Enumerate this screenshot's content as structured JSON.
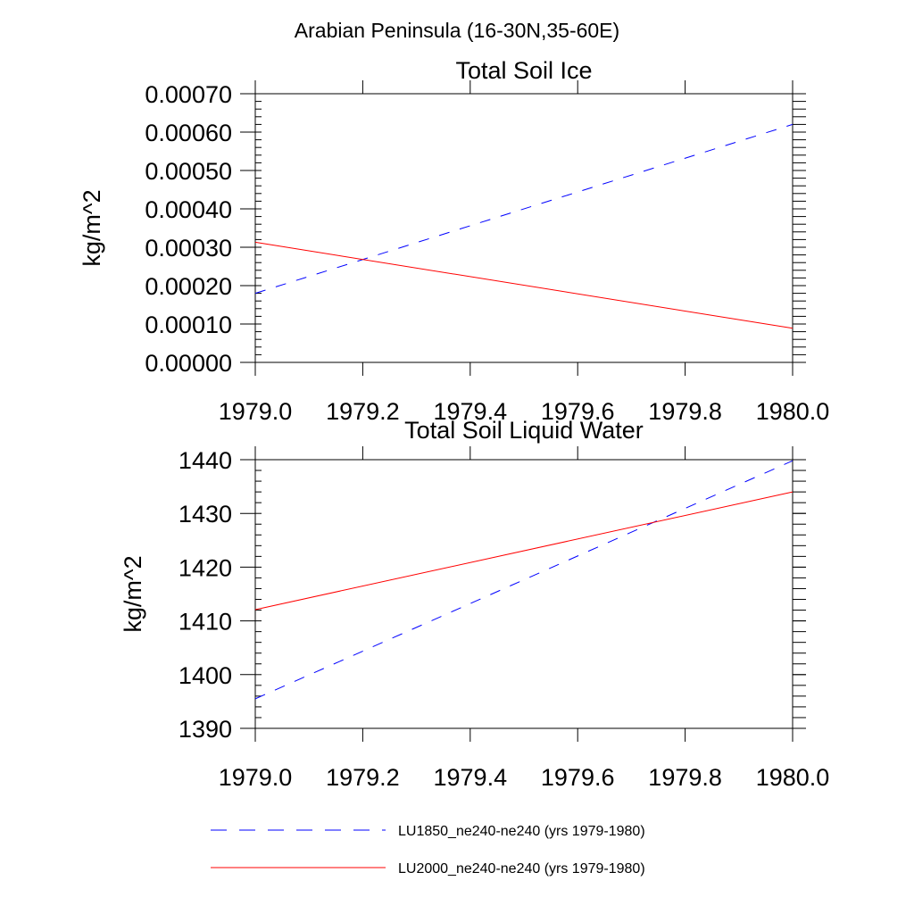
{
  "figure_title": "Arabian Peninsula (16-30N,35-60E)",
  "colors": {
    "series_1": "#0000ff",
    "series_2": "#ff0000",
    "axes": "#000000",
    "background": "#ffffff"
  },
  "legend": {
    "placement": "bottom",
    "entries": [
      {
        "label": "LU1850_ne240-ne240 (yrs 1979-1980)",
        "style": "dashed",
        "color": "#0000ff"
      },
      {
        "label": "LU2000_ne240-ne240 (yrs 1979-1980)",
        "style": "solid",
        "color": "#ff0000"
      }
    ]
  },
  "chart_data": [
    {
      "type": "line",
      "title": "Total Soil Ice",
      "xlabel": "",
      "ylabel": "kg/m^2",
      "xlim": [
        1979.0,
        1980.0
      ],
      "ylim": [
        0.0,
        0.0007
      ],
      "x_ticks": [
        1979.0,
        1979.2,
        1979.4,
        1979.6,
        1979.8,
        1980.0
      ],
      "x_tick_labels": [
        "1979.0",
        "1979.2",
        "1979.4",
        "1979.6",
        "1979.8",
        "1980.0"
      ],
      "y_ticks": [
        0.0,
        0.0001,
        0.0002,
        0.0003,
        0.0004,
        0.0005,
        0.0006,
        0.0007
      ],
      "y_tick_labels": [
        "0.00000",
        "0.00010",
        "0.00020",
        "0.00030",
        "0.00040",
        "0.00050",
        "0.00060",
        "0.00070"
      ],
      "y_minor_step": 2e-05,
      "grid": false,
      "series": [
        {
          "style": "dashed",
          "color": "#0000ff",
          "x": [
            1979.0,
            1980.0
          ],
          "y": [
            0.00018,
            0.00062
          ]
        },
        {
          "style": "solid",
          "color": "#ff0000",
          "x": [
            1979.0,
            1980.0
          ],
          "y": [
            0.000313,
            8.9e-05
          ]
        }
      ]
    },
    {
      "type": "line",
      "title": "Total Soil Liquid Water",
      "xlabel": "",
      "ylabel": "kg/m^2",
      "xlim": [
        1979.0,
        1980.0
      ],
      "ylim": [
        1390,
        1440
      ],
      "x_ticks": [
        1979.0,
        1979.2,
        1979.4,
        1979.6,
        1979.8,
        1980.0
      ],
      "x_tick_labels": [
        "1979.0",
        "1979.2",
        "1979.4",
        "1979.6",
        "1979.8",
        "1980.0"
      ],
      "y_ticks": [
        1390,
        1400,
        1410,
        1420,
        1430,
        1440
      ],
      "y_tick_labels": [
        "1390",
        "1400",
        "1410",
        "1420",
        "1430",
        "1440"
      ],
      "y_minor_step": 2,
      "grid": false,
      "series": [
        {
          "style": "dashed",
          "color": "#0000ff",
          "x": [
            1979.0,
            1980.0
          ],
          "y": [
            1395.5,
            1439.8
          ]
        },
        {
          "style": "solid",
          "color": "#ff0000",
          "x": [
            1979.0,
            1980.0
          ],
          "y": [
            1412.1,
            1434.0
          ]
        }
      ]
    }
  ]
}
